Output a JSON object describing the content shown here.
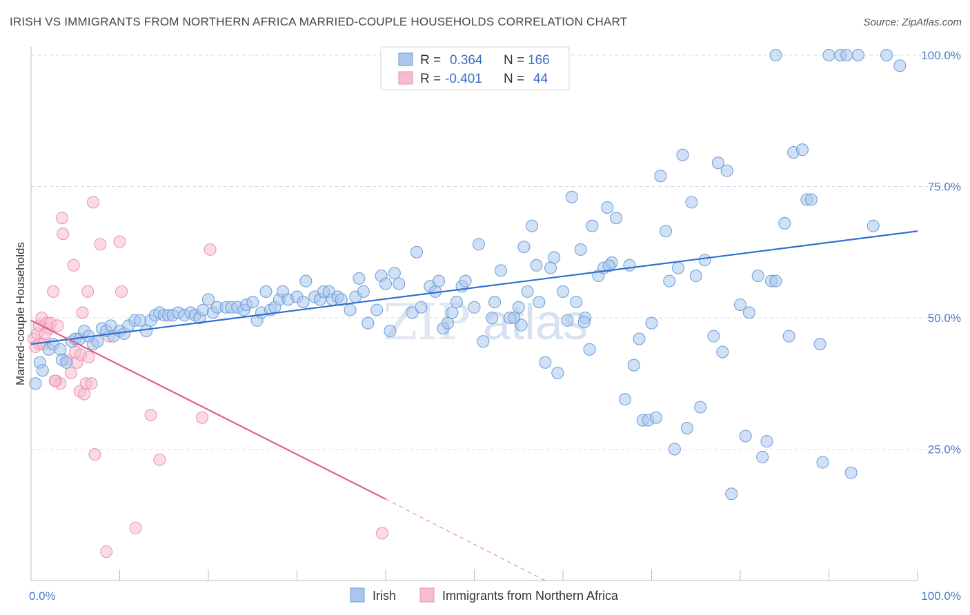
{
  "title": "IRISH VS IMMIGRANTS FROM NORTHERN AFRICA MARRIED-COUPLE HOUSEHOLDS CORRELATION CHART",
  "source": "Source: ZipAtlas.com",
  "colors": {
    "series1_fill": "#a9c7ec",
    "series1_stroke": "#6b9ad8",
    "series1_line": "#2f6fcf",
    "series2_fill": "#f6bcd0",
    "series2_stroke": "#e98fb0",
    "series2_line": "#e05b8d",
    "grid": "#d9dde3",
    "tick_label": "#4a7cc9"
  },
  "legend_box": {
    "row1": {
      "r_label": "R =",
      "r_value": "0.364",
      "n_label": "N =",
      "n_value": "166"
    },
    "row2": {
      "r_label": "R =",
      "r_value": "-0.401",
      "n_label": "N =",
      "n_value": "44"
    }
  },
  "watermark": {
    "part1": "ZIP",
    "part2": "atlas"
  },
  "chart_data": {
    "type": "scatter",
    "title": "IRISH VS IMMIGRANTS FROM NORTHERN AFRICA MARRIED-COUPLE HOUSEHOLDS CORRELATION CHART",
    "xlabel": "",
    "ylabel": "Married-couple Households",
    "xlim": [
      0,
      100
    ],
    "ylim": [
      0,
      100
    ],
    "x_tick_labels": [
      "0.0%",
      "100.0%"
    ],
    "y_tick_labels": [
      "25.0%",
      "50.0%",
      "75.0%",
      "100.0%"
    ],
    "y_ticks": [
      25,
      50,
      75,
      100
    ],
    "grid": true,
    "legend_position": "bottom",
    "series": [
      {
        "name": "Irish",
        "trend": {
          "x0": 0,
          "y0": 45,
          "x1": 100,
          "y1": 66.5
        },
        "points": [
          [
            0.5,
            37.5
          ],
          [
            1,
            41.5
          ],
          [
            1.3,
            40
          ],
          [
            2,
            44
          ],
          [
            2.5,
            45
          ],
          [
            3.3,
            44
          ],
          [
            3.5,
            42
          ],
          [
            4,
            41.5
          ],
          [
            4.6,
            45.5
          ],
          [
            5,
            46
          ],
          [
            5.5,
            46
          ],
          [
            6,
            47.5
          ],
          [
            6.5,
            46.5
          ],
          [
            7,
            45
          ],
          [
            7.5,
            45.5
          ],
          [
            8,
            48
          ],
          [
            8.5,
            47.5
          ],
          [
            9,
            48.5
          ],
          [
            9.3,
            46.5
          ],
          [
            10,
            47.5
          ],
          [
            10.5,
            47
          ],
          [
            11,
            48.5
          ],
          [
            11.7,
            49.5
          ],
          [
            12.3,
            49.5
          ],
          [
            13,
            47.5
          ],
          [
            13.5,
            49.5
          ],
          [
            14,
            50.5
          ],
          [
            14.5,
            51
          ],
          [
            15,
            50.5
          ],
          [
            15.5,
            50.5
          ],
          [
            16,
            50.5
          ],
          [
            16.6,
            51
          ],
          [
            17.3,
            50.5
          ],
          [
            18,
            51
          ],
          [
            18.5,
            50.5
          ],
          [
            19,
            50
          ],
          [
            19.4,
            51.5
          ],
          [
            20,
            53.5
          ],
          [
            20.5,
            51
          ],
          [
            21,
            52
          ],
          [
            22,
            52
          ],
          [
            22.6,
            52
          ],
          [
            23.3,
            52
          ],
          [
            24,
            51.5
          ],
          [
            24.3,
            52.5
          ],
          [
            25,
            53
          ],
          [
            25.5,
            49.5
          ],
          [
            26,
            51
          ],
          [
            26.5,
            55
          ],
          [
            27,
            51.5
          ],
          [
            27.5,
            52
          ],
          [
            28,
            53.5
          ],
          [
            28.4,
            55
          ],
          [
            29,
            53.5
          ],
          [
            30,
            54
          ],
          [
            30.7,
            53
          ],
          [
            31,
            57
          ],
          [
            32,
            54
          ],
          [
            32.6,
            53.5
          ],
          [
            33,
            55
          ],
          [
            33.6,
            55
          ],
          [
            34,
            53.5
          ],
          [
            34.6,
            54
          ],
          [
            35,
            53.5
          ],
          [
            36,
            51.5
          ],
          [
            36.6,
            54
          ],
          [
            37,
            57.5
          ],
          [
            37.5,
            55
          ],
          [
            38,
            49
          ],
          [
            39,
            51.5
          ],
          [
            39.5,
            58
          ],
          [
            40,
            56.5
          ],
          [
            40.5,
            47.5
          ],
          [
            41,
            58.5
          ],
          [
            41.5,
            56.5
          ],
          [
            43,
            51
          ],
          [
            43.5,
            62.5
          ],
          [
            44,
            52
          ],
          [
            45,
            56
          ],
          [
            45.6,
            55
          ],
          [
            46,
            57
          ],
          [
            46.5,
            48
          ],
          [
            47,
            49
          ],
          [
            47.5,
            51
          ],
          [
            48,
            53
          ],
          [
            48.6,
            56
          ],
          [
            49,
            57
          ],
          [
            50,
            52
          ],
          [
            50.5,
            64
          ],
          [
            51,
            45.5
          ],
          [
            52,
            50
          ],
          [
            52.3,
            53
          ],
          [
            53,
            59
          ],
          [
            54,
            50
          ],
          [
            54.5,
            50
          ],
          [
            55,
            52
          ],
          [
            55.6,
            63.5
          ],
          [
            56,
            55
          ],
          [
            56.5,
            67.5
          ],
          [
            57,
            60
          ],
          [
            57.3,
            53
          ],
          [
            58,
            41.5
          ],
          [
            58.6,
            59.5
          ],
          [
            59,
            61.5
          ],
          [
            59.4,
            39.5
          ],
          [
            60,
            55
          ],
          [
            60.5,
            49.5
          ],
          [
            61,
            73
          ],
          [
            61.5,
            53
          ],
          [
            62,
            63
          ],
          [
            62.5,
            50
          ],
          [
            63,
            44
          ],
          [
            63.3,
            67.5
          ],
          [
            64,
            58
          ],
          [
            64.6,
            59.5
          ],
          [
            65,
            71
          ],
          [
            65.5,
            60.5
          ],
          [
            66,
            69
          ],
          [
            67,
            34.5
          ],
          [
            67.5,
            60
          ],
          [
            68,
            41
          ],
          [
            68.6,
            46
          ],
          [
            69,
            30.5
          ],
          [
            69.6,
            30.5
          ],
          [
            70,
            49
          ],
          [
            70.5,
            31
          ],
          [
            71,
            77
          ],
          [
            71.6,
            66.5
          ],
          [
            72,
            57
          ],
          [
            72.6,
            25
          ],
          [
            73,
            59.5
          ],
          [
            73.5,
            81
          ],
          [
            74,
            29
          ],
          [
            74.5,
            72
          ],
          [
            75,
            58
          ],
          [
            75.5,
            33
          ],
          [
            76,
            61
          ],
          [
            77,
            46.5
          ],
          [
            77.5,
            79.5
          ],
          [
            78,
            43.5
          ],
          [
            78.5,
            78
          ],
          [
            79,
            16.5
          ],
          [
            80,
            52.5
          ],
          [
            80.6,
            27.5
          ],
          [
            81,
            51
          ],
          [
            82,
            58
          ],
          [
            82.5,
            23.5
          ],
          [
            83,
            26.5
          ],
          [
            83.5,
            57
          ],
          [
            84,
            57
          ],
          [
            84,
            100
          ],
          [
            85,
            68
          ],
          [
            85.5,
            46.5
          ],
          [
            86,
            81.5
          ],
          [
            87,
            82
          ],
          [
            87.5,
            72.5
          ],
          [
            88,
            72.5
          ],
          [
            89,
            45
          ],
          [
            89.3,
            22.5
          ],
          [
            90,
            100
          ],
          [
            91.3,
            100
          ],
          [
            92,
            100
          ],
          [
            92.5,
            20.5
          ],
          [
            93.3,
            100
          ],
          [
            95,
            67.5
          ],
          [
            96.5,
            100
          ],
          [
            98,
            98
          ],
          [
            62.4,
            49.2
          ],
          [
            65.2,
            59.9
          ],
          [
            55.3,
            48.6
          ]
        ]
      },
      {
        "name": "Immigrants from Northern Africa",
        "trend": {
          "x0": 0,
          "y0": 49.5,
          "x1": 40,
          "y1": 15.5
        },
        "trend_dash": {
          "x0": 40,
          "y0": 15.5,
          "x1": 58,
          "y1": 0
        },
        "points": [
          [
            0.3,
            46
          ],
          [
            0.5,
            44.5
          ],
          [
            0.7,
            47
          ],
          [
            0.9,
            48.5
          ],
          [
            1,
            45
          ],
          [
            1.2,
            50
          ],
          [
            1.4,
            45
          ],
          [
            1.6,
            47
          ],
          [
            1.8,
            49
          ],
          [
            2,
            48
          ],
          [
            2.2,
            49
          ],
          [
            2.5,
            55
          ],
          [
            2.8,
            38
          ],
          [
            3,
            48.5
          ],
          [
            3.3,
            37.5
          ],
          [
            3.5,
            69
          ],
          [
            3.6,
            66
          ],
          [
            4,
            42
          ],
          [
            4.5,
            39.5
          ],
          [
            4.8,
            60
          ],
          [
            5,
            43.5
          ],
          [
            5.2,
            41.5
          ],
          [
            5.5,
            36
          ],
          [
            5.6,
            43
          ],
          [
            5.8,
            51
          ],
          [
            6,
            35.5
          ],
          [
            6.2,
            37.5
          ],
          [
            6.4,
            55
          ],
          [
            6.5,
            42.5
          ],
          [
            6.8,
            37.5
          ],
          [
            7,
            72
          ],
          [
            7.2,
            24
          ],
          [
            7.8,
            64
          ],
          [
            8.5,
            5.5
          ],
          [
            8.8,
            46.5
          ],
          [
            10,
            64.5
          ],
          [
            10.2,
            55
          ],
          [
            11.8,
            10
          ],
          [
            13.5,
            31.5
          ],
          [
            14.5,
            23
          ],
          [
            19.3,
            31
          ],
          [
            20.2,
            63
          ],
          [
            39.6,
            9
          ],
          [
            2.7,
            38
          ]
        ]
      }
    ]
  },
  "bottom_legend": {
    "item1": "Irish",
    "item2": "Immigrants from Northern Africa"
  }
}
